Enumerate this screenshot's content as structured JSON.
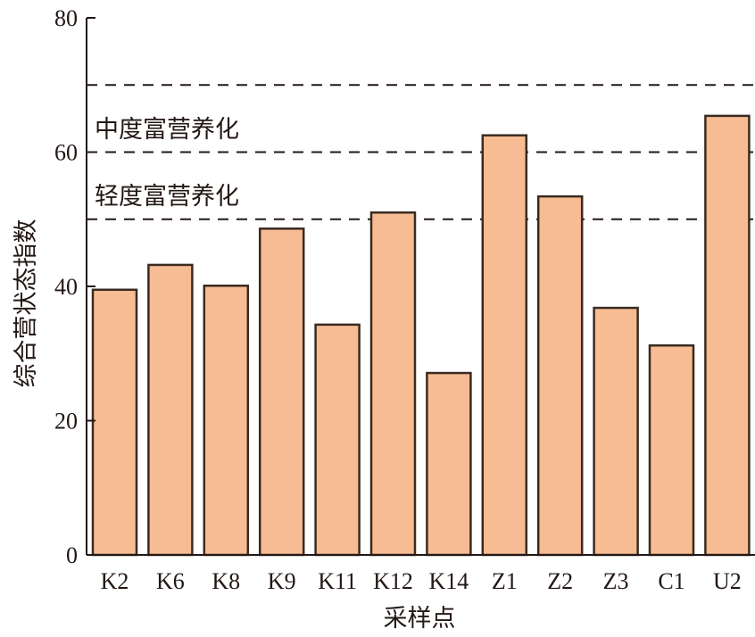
{
  "chart_data": {
    "type": "bar",
    "title": "",
    "xlabel": "采样点",
    "ylabel": "综合营状态指数",
    "ylim": [
      0,
      80
    ],
    "yticks": [
      0,
      20,
      40,
      60,
      80
    ],
    "categories": [
      "K2",
      "K6",
      "K8",
      "K9",
      "K11",
      "K12",
      "K14",
      "Z1",
      "Z2",
      "Z3",
      "C1",
      "U2"
    ],
    "values": [
      39.5,
      43.2,
      40.1,
      48.6,
      34.3,
      51.0,
      27.1,
      62.5,
      53.4,
      36.8,
      31.2,
      65.4
    ],
    "reference_lines": [
      50,
      60,
      70
    ],
    "annotations": [
      {
        "text": "中度富营养化",
        "between": [
          60,
          70
        ]
      },
      {
        "text": "轻度富营养化",
        "between": [
          50,
          60
        ]
      }
    ],
    "grid": false,
    "colors": {
      "bar_fill": "#F7BC94",
      "bar_stroke": "#3a2a20",
      "axis": "#231815"
    }
  }
}
